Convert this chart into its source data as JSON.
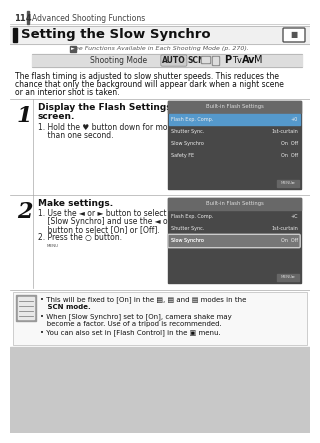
{
  "bg_color": "#ffffff",
  "header_num": "114",
  "header_sub": "Advanced Shooting Functions",
  "title": "Setting the Slow Synchro",
  "see_text": "See Functions Available in Each Shooting Mode (p. 270).",
  "shooting_mode_label": "Shooting Mode",
  "body_text1": "The flash timing is adjusted to slow shutter speeds. This reduces the",
  "body_text2": "chance that only the background will appear dark when a night scene",
  "body_text3": "or an interior shot is taken.",
  "step1_num": "1",
  "step1_title1": "Display the Flash Settings",
  "step1_title2": "screen.",
  "step1_line1": "1. Hold the ♥ button down for more",
  "step1_line2": "    than one second.",
  "step2_num": "2",
  "step2_title": "Make settings.",
  "step2_line1": "1. Use the ◄ or ► button to select",
  "step2_line2": "    [Slow Synchro] and use the ◄ or ►",
  "step2_line3": "    button to select [On] or [Off].",
  "step2_line4": "2. Press the ○ button.",
  "note1a": "• This will be fixed to [On] in the",
  "note1b": "   SCN mode.",
  "note2a": "• When [Slow Synchro] set to [On], camera shake may",
  "note2b": "   become a factor. Use of a tripod is recommended.",
  "note3": "• You can also set in [Flash Control] in the",
  "screen1_title": "Built-in Flash Settings",
  "screen1_r1l": "Flash Exp. Comp.",
  "screen1_r1v": "+0",
  "screen1_r2l": "Shutter Sync.",
  "screen1_r2v": "1st-curtain",
  "screen1_r3l": "Slow Synchro",
  "screen1_r3v": "On  Off",
  "screen1_r4l": "Safety FE",
  "screen1_r4v": "On  Off",
  "screen2_title": "Built-in Flash Settings",
  "screen2_r1l": "Flash Exp. Comp.",
  "screen2_r1v": "+C",
  "screen2_r2l": "Shutter Sync.",
  "screen2_r2v": "1st-curtain",
  "screen2_r3l": "Slow Synchro",
  "screen2_r3v": "On  Off"
}
